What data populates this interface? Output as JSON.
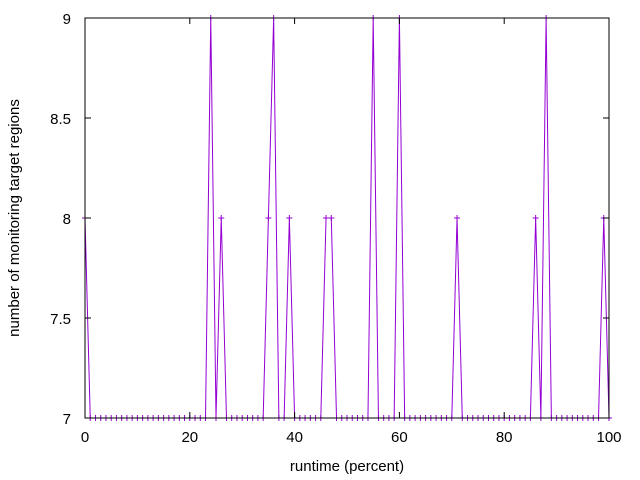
{
  "chart_data": {
    "type": "line",
    "title": "",
    "xlabel": "runtime (percent)",
    "ylabel": "number of monitoring target regions",
    "xlim": [
      0,
      100
    ],
    "ylim": [
      7,
      9
    ],
    "xticks": [
      0,
      20,
      40,
      60,
      80,
      100
    ],
    "yticks": [
      7,
      7.5,
      8,
      8.5,
      9
    ],
    "xtick_labels": [
      "0",
      "20",
      "40",
      "60",
      "80",
      "100"
    ],
    "ytick_labels": [
      "7",
      "7.5",
      "8",
      "8.5",
      "9"
    ],
    "grid": false,
    "legend": "none",
    "marker": "plus",
    "series": [
      {
        "color": "#9400d3",
        "x": [
          0,
          1,
          2,
          3,
          4,
          5,
          6,
          7,
          8,
          9,
          10,
          11,
          12,
          13,
          14,
          15,
          16,
          17,
          18,
          19,
          20,
          21,
          22,
          23,
          24,
          25,
          26,
          27,
          28,
          29,
          30,
          31,
          32,
          33,
          34,
          35,
          36,
          37,
          38,
          39,
          40,
          41,
          42,
          43,
          44,
          45,
          46,
          47,
          48,
          49,
          50,
          51,
          52,
          53,
          54,
          55,
          56,
          57,
          58,
          59,
          60,
          61,
          62,
          63,
          64,
          65,
          66,
          67,
          68,
          69,
          70,
          71,
          72,
          73,
          74,
          75,
          76,
          77,
          78,
          79,
          80,
          81,
          82,
          83,
          84,
          85,
          86,
          87,
          88,
          89,
          90,
          91,
          92,
          93,
          94,
          95,
          96,
          97,
          98,
          99,
          100
        ],
        "y": [
          8,
          7,
          7,
          7,
          7,
          7,
          7,
          7,
          7,
          7,
          7,
          7,
          7,
          7,
          7,
          7,
          7,
          7,
          7,
          7,
          7,
          7,
          7,
          7,
          9,
          7,
          8,
          7,
          7,
          7,
          7,
          7,
          7,
          7,
          7,
          8,
          9,
          7,
          7,
          8,
          7,
          7,
          7,
          7,
          7,
          7,
          8,
          8,
          7,
          7,
          7,
          7,
          7,
          7,
          7,
          9,
          7,
          7,
          7,
          7,
          9,
          7,
          7,
          7,
          7,
          7,
          7,
          7,
          7,
          7,
          7,
          8,
          7,
          7,
          7,
          7,
          7,
          7,
          7,
          7,
          7,
          7,
          7,
          7,
          7,
          7,
          8,
          7,
          9,
          7,
          7,
          7,
          7,
          7,
          7,
          7,
          7,
          7,
          7,
          8,
          7
        ]
      }
    ]
  }
}
